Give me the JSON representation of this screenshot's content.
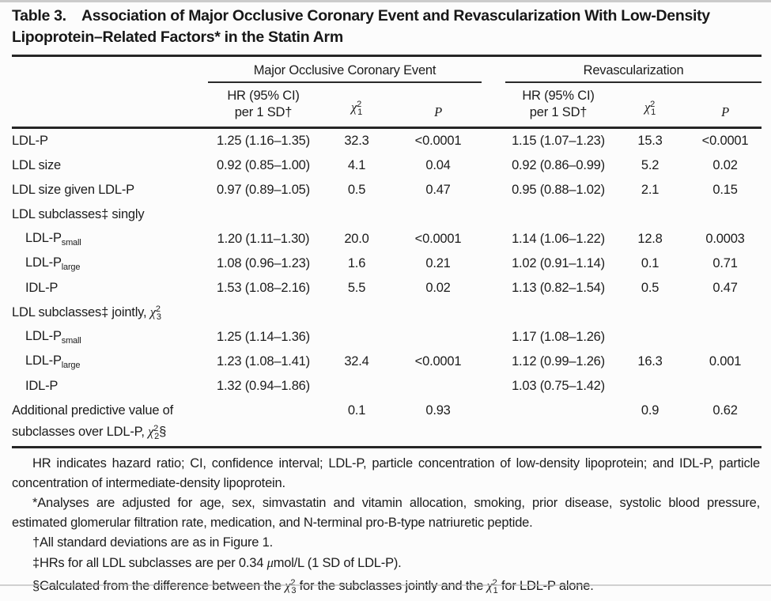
{
  "page": {
    "title": "Table 3. Association of Major Occlusive Coronary Event and Revascularization With Low-Density\nLipoprotein–Related Factors* in the Statin Arm"
  },
  "table": {
    "groups": [
      {
        "label": "Major Occlusive Coronary Event"
      },
      {
        "label": "Revascularization"
      }
    ],
    "columns": {
      "hr": "HR (95% CI)\nper 1 SD†",
      "chi": "*χ*^2^~1~",
      "p": "*P*"
    },
    "rows": [
      {
        "label": "LDL-P",
        "cells": [
          "1.25 (1.16–1.35)",
          "32.3",
          "<0.0001",
          "1.15 (1.07–1.23)",
          "15.3",
          "<0.0001"
        ]
      },
      {
        "label": "LDL size",
        "cells": [
          "0.92 (0.85–1.00)",
          "4.1",
          "0.04",
          "0.92 (0.86–0.99)",
          "5.2",
          "0.02"
        ]
      },
      {
        "label": "LDL size given LDL-P",
        "cells": [
          "0.97 (0.89–1.05)",
          "0.5",
          "0.47",
          "0.95 (0.88–1.02)",
          "2.1",
          "0.15"
        ]
      },
      {
        "label": "LDL subclasses‡ singly",
        "cells": [
          "",
          "",
          "",
          "",
          "",
          ""
        ]
      },
      {
        "label": "LDL-P~small~",
        "cells": [
          "1.20 (1.11–1.30)",
          "20.0",
          "<0.0001",
          "1.14 (1.06–1.22)",
          "12.8",
          "0.0003"
        ]
      },
      {
        "label": "LDL-P~large~",
        "cells": [
          "1.08 (0.96–1.23)",
          "1.6",
          "0.21",
          "1.02 (0.91–1.14)",
          "0.1",
          "0.71"
        ]
      },
      {
        "label": "IDL-P",
        "cells": [
          "1.53 (1.08–2.16)",
          "5.5",
          "0.02",
          "1.13 (0.82–1.54)",
          "0.5",
          "0.47"
        ]
      },
      {
        "label": "LDL subclasses‡ jointly, *χ*^2^~3~",
        "cells": [
          "",
          "",
          "",
          "",
          "",
          ""
        ]
      },
      {
        "label": "LDL-P~small~",
        "cells": [
          "1.25 (1.14–1.36)",
          "",
          "",
          "1.17 (1.08–1.26)",
          "",
          ""
        ]
      },
      {
        "label": "LDL-P~large~",
        "cells": [
          "1.23 (1.08–1.41)",
          "32.4",
          "<0.0001",
          "1.12 (0.99–1.26)",
          "16.3",
          "0.001"
        ]
      },
      {
        "label": "IDL-P",
        "cells": [
          "1.32 (0.94–1.86)",
          "",
          "",
          "1.03 (0.75–1.42)",
          "",
          ""
        ]
      },
      {
        "label": "Additional predictive value of\nsubclasses over LDL-P, *χ*^2^~2~§",
        "cells": [
          "",
          "0.1",
          "0.93",
          "",
          "0.9",
          "0.62"
        ]
      }
    ]
  },
  "footnotes": [
    "HR indicates hazard ratio; CI, confidence interval; LDL-P, particle concentration of low-density lipoprotein; and IDL-P, particle concentration of intermediate-density lipoprotein.",
    "*Analyses are adjusted for age, sex, simvastatin and vitamin allocation, smoking, prior disease, systolic blood pressure, estimated glomerular filtration rate, medication, and N-terminal pro-B-type natriuretic peptide.",
    "†All standard deviations are as in Figure 1.",
    "‡HRs for all LDL subclasses are per 0.34 *μ*mol/L (1 SD of LDL-P).",
    "§Calculated from the difference between the *χ*^2^~3~ for the subclasses jointly and the *χ*^2^~1~ for LDL-P alone."
  ]
}
